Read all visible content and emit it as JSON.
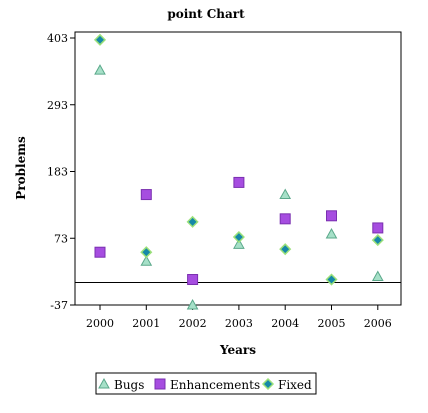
{
  "chart_data": {
    "type": "scatter",
    "title": "point Chart",
    "xlabel": "Years",
    "ylabel": "Problems",
    "categories": [
      "2000",
      "2001",
      "2002",
      "2003",
      "2004",
      "2005",
      "2006"
    ],
    "y_ticks": [
      -37,
      73,
      183,
      293,
      403
    ],
    "y_tick_labels": [
      "-37",
      "73",
      "183",
      "293",
      "403"
    ],
    "ylim": [
      -37,
      403
    ],
    "baseline": 0,
    "grid": false,
    "legend_position": "bottom",
    "series": [
      {
        "name": "Bugs",
        "marker": "triangle",
        "color": "#a6e0c8",
        "stroke": "#5aa88a",
        "values": [
          350,
          35,
          -37,
          63,
          145,
          80,
          10
        ]
      },
      {
        "name": "Enhancements",
        "marker": "square",
        "color": "#a64de0",
        "stroke": "#7a30b0",
        "values": [
          50,
          145,
          5,
          165,
          105,
          110,
          90
        ]
      },
      {
        "name": "Fixed",
        "marker": "diamond",
        "color": "#1588a8",
        "stroke": "#9be07a",
        "values": [
          400,
          50,
          100,
          75,
          55,
          5,
          70
        ]
      }
    ]
  }
}
